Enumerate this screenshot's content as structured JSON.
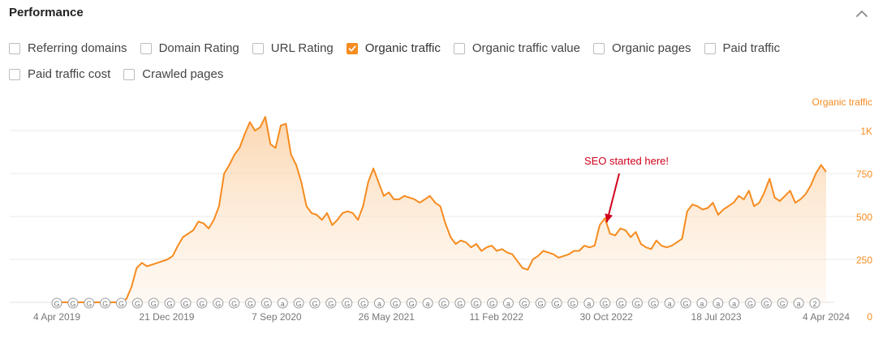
{
  "panel": {
    "title": "Performance"
  },
  "metrics": [
    {
      "label": "Referring domains",
      "checked": false
    },
    {
      "label": "Domain Rating",
      "checked": false
    },
    {
      "label": "URL Rating",
      "checked": false
    },
    {
      "label": "Organic traffic",
      "checked": true
    },
    {
      "label": "Organic traffic value",
      "checked": false
    },
    {
      "label": "Organic pages",
      "checked": false
    },
    {
      "label": "Paid traffic",
      "checked": false
    },
    {
      "label": "Paid traffic cost",
      "checked": false
    },
    {
      "label": "Crawled pages",
      "checked": false
    }
  ],
  "chart_data": {
    "type": "area",
    "ylabel": "Organic traffic",
    "ylim": [
      0,
      1100
    ],
    "yticks": [
      0,
      250,
      500,
      750,
      "1K"
    ],
    "xtick_labels": [
      "4 Apr 2019",
      "21 Dec 2019",
      "7 Sep 2020",
      "26 May 2021",
      "11 Feb 2022",
      "30 Oct 2022",
      "18 Jul 2023",
      "4 Apr 2024"
    ],
    "accent_color": "#f68b1f",
    "grid": true,
    "annotation": {
      "text": "SEO started here!",
      "color": "#d0021b",
      "points_to_index": 108
    },
    "series": [
      {
        "name": "Organic traffic",
        "values": [
          0,
          0,
          0,
          0,
          0,
          0,
          0,
          0,
          0,
          0,
          0,
          0,
          0,
          0,
          20,
          90,
          200,
          230,
          210,
          220,
          230,
          240,
          250,
          270,
          330,
          380,
          400,
          420,
          470,
          460,
          430,
          480,
          560,
          750,
          800,
          860,
          900,
          980,
          1050,
          1000,
          1020,
          1080,
          920,
          900,
          1030,
          1040,
          860,
          800,
          700,
          560,
          520,
          510,
          480,
          520,
          450,
          480,
          520,
          530,
          520,
          480,
          560,
          700,
          780,
          700,
          620,
          640,
          600,
          600,
          620,
          610,
          600,
          580,
          600,
          620,
          580,
          560,
          460,
          380,
          340,
          360,
          350,
          320,
          340,
          300,
          320,
          330,
          300,
          310,
          290,
          280,
          240,
          200,
          190,
          250,
          270,
          300,
          290,
          280,
          260,
          270,
          280,
          300,
          300,
          330,
          320,
          330,
          450,
          490,
          400,
          390,
          430,
          420,
          380,
          410,
          340,
          320,
          310,
          360,
          330,
          320,
          330,
          350,
          370,
          530,
          570,
          560,
          540,
          550,
          580,
          510,
          540,
          560,
          580,
          620,
          600,
          650,
          560,
          580,
          640,
          720,
          610,
          590,
          620,
          650,
          580,
          600,
          630,
          680,
          750,
          800,
          760
        ]
      }
    ],
    "event_markers": [
      "G",
      "G",
      "G",
      "G",
      "G",
      "G",
      "G",
      "G",
      "G",
      "G",
      "G",
      "G",
      "G",
      "G",
      "a",
      "G",
      "G",
      "G",
      "G",
      "G",
      "a",
      "G",
      "G",
      "a",
      "G",
      "G",
      "G",
      "G",
      "a",
      "G",
      "G",
      "G",
      "G",
      "a",
      "G",
      "G",
      "G",
      "G",
      "a",
      "G",
      "a",
      "a",
      "a",
      "G",
      "G",
      "G",
      "a",
      "2"
    ]
  }
}
